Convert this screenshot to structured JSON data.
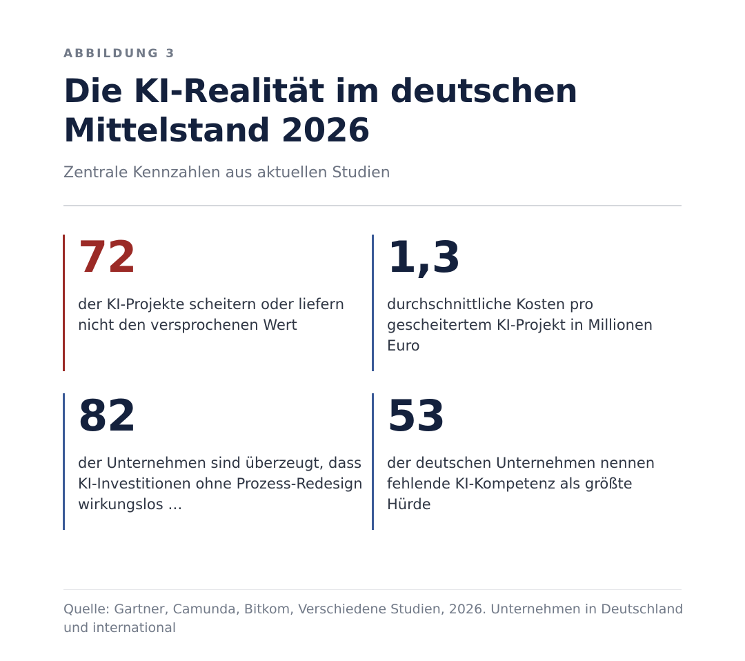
{
  "header": {
    "eyebrow": "ABBILDUNG 3",
    "title": "Die KI-Realität im deutschen Mittelstand 2026",
    "subtitle": "Zentrale Kennzahlen aus aktuellen Studien"
  },
  "colors": {
    "accent_red": "#9b2a26",
    "accent_blue": "#3a5a97",
    "navy": "#14213d",
    "muted": "#727a88"
  },
  "stats": [
    {
      "value": "72",
      "description": "der KI-Projekte scheitern oder liefern nicht den versprochenen Wert"
    },
    {
      "value": "1,3",
      "description": "durchschnittliche Kosten pro gescheitertem KI-Projekt in Millionen Euro"
    },
    {
      "value": "82",
      "description": "der Unternehmen sind überzeugt, dass KI-Investitionen ohne Prozess-Redesign wirkungslos …"
    },
    {
      "value": "53",
      "description": "der deutschen Unternehmen nennen fehlende KI-Kompetenz als größte Hürde"
    }
  ],
  "footer": {
    "source": "Quelle: Gartner, Camunda, Bitkom, Verschiedene Studien, 2026. Unternehmen in Deutschland und international"
  }
}
